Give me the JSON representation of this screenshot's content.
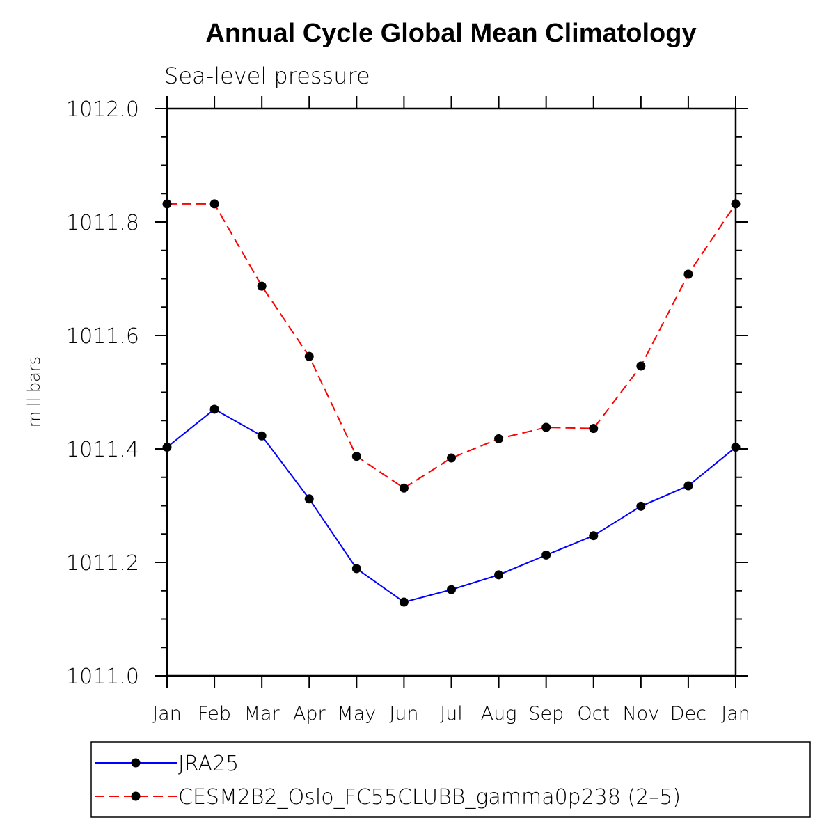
{
  "chart_data": {
    "type": "line",
    "title": "Annual Cycle Global Mean Climatology",
    "subtitle": "Sea-level pressure",
    "ylabel": "millibars",
    "xlabel": "",
    "categories": [
      "Jan",
      "Feb",
      "Mar",
      "Apr",
      "May",
      "Jun",
      "Jul",
      "Aug",
      "Sep",
      "Oct",
      "Nov",
      "Dec",
      "Jan"
    ],
    "ylim": [
      1011.0,
      1012.0
    ],
    "yticks": [
      "1011.0",
      "1011.2",
      "1011.4",
      "1011.6",
      "1011.8",
      "1012.0"
    ],
    "ytick_values": [
      1011.0,
      1011.2,
      1011.4,
      1011.6,
      1011.8,
      1012.0
    ],
    "series": [
      {
        "name": "JRA25",
        "color": "#0000ff",
        "dash": "solid",
        "values": [
          1011.403,
          1011.47,
          1011.423,
          1011.312,
          1011.189,
          1011.13,
          1011.152,
          1011.178,
          1011.213,
          1011.247,
          1011.299,
          1011.335,
          1011.403
        ]
      },
      {
        "name": "CESM2B2_Oslo_FC55CLUBB_gamma0p238 (2–5)",
        "color": "#ff0000",
        "dash": "dashed",
        "values": [
          1011.832,
          1011.832,
          1011.687,
          1011.563,
          1011.387,
          1011.331,
          1011.384,
          1011.418,
          1011.438,
          1011.436,
          1011.546,
          1011.708,
          1011.832
        ]
      }
    ],
    "marker_color": "#000000",
    "legend_placement": "bottom"
  }
}
